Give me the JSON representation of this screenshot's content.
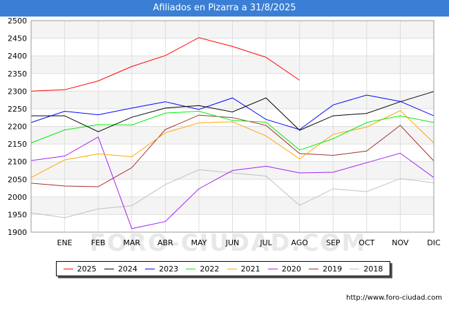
{
  "title": "Afiliados en Pizarra a 31/8/2025",
  "source": "http://www.foro-ciudad.com",
  "watermark": "FORO-CIUDAD.COM",
  "chart_data": {
    "type": "line",
    "categories": [
      "",
      "ENE",
      "FEB",
      "MAR",
      "ABR",
      "MAY",
      "JUN",
      "JUL",
      "AGO",
      "SEP",
      "OCT",
      "NOV",
      "DIC"
    ],
    "ylim": [
      1900,
      2500
    ],
    "yticks": [
      1900,
      1950,
      2000,
      2050,
      2100,
      2150,
      2200,
      2250,
      2300,
      2350,
      2400,
      2450,
      2500
    ],
    "grid": true,
    "legend_position": "bottom",
    "series": [
      {
        "name": "2025",
        "color": "#ff0000",
        "values": [
          2300,
          2304,
          2329,
          2370,
          2401,
          2452,
          2427,
          2396,
          2331,
          null,
          null,
          null,
          null
        ]
      },
      {
        "name": "2024",
        "color": "#000000",
        "values": [
          2230,
          2230,
          2185,
          2226,
          2252,
          2259,
          2241,
          2281,
          2189,
          2230,
          2237,
          2270,
          2299
        ]
      },
      {
        "name": "2023",
        "color": "#0000ff",
        "values": [
          2211,
          2243,
          2233,
          2252,
          2270,
          2248,
          2281,
          2220,
          2191,
          2261,
          2289,
          2271,
          2230
        ]
      },
      {
        "name": "2022",
        "color": "#00ee00",
        "values": [
          2153,
          2190,
          2205,
          2204,
          2238,
          2243,
          2217,
          2212,
          2133,
          2165,
          2211,
          2230,
          2211
        ]
      },
      {
        "name": "2021",
        "color": "#ffa500",
        "values": [
          2055,
          2105,
          2122,
          2114,
          2182,
          2210,
          2213,
          2173,
          2108,
          2178,
          2198,
          2245,
          2153
        ]
      },
      {
        "name": "2020",
        "color": "#a020f0",
        "values": [
          2103,
          2116,
          2170,
          1910,
          1930,
          2023,
          2075,
          2087,
          2068,
          2070,
          2097,
          2124,
          2055
        ]
      },
      {
        "name": "2019",
        "color": "#a52a2a",
        "values": [
          2039,
          2031,
          2029,
          2083,
          2191,
          2232,
          2225,
          2203,
          2123,
          2118,
          2130,
          2203,
          2102
        ]
      },
      {
        "name": "2018",
        "color": "#c0c0c0",
        "values": [
          1955,
          1941,
          1966,
          1975,
          2035,
          2077,
          2068,
          2059,
          1976,
          2023,
          2015,
          2052,
          2040
        ]
      }
    ]
  }
}
